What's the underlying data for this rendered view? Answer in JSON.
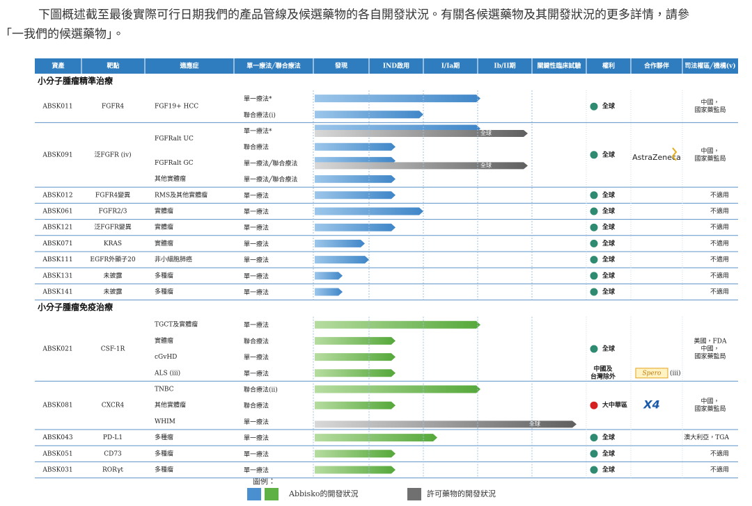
{
  "intro": [
    "下圖概述截至最後實際可行日期我們的產品管線及候選藥物的各自開發狀況。有關各候選藥物及其開發狀況的更多詳情，請參",
    "「一我們的候選藥物」。"
  ],
  "table": {
    "header": [
      "資產",
      "靶點",
      "適應症",
      "單一療法╱聯合療法",
      "發現",
      "IND啟用",
      "I/Ia期",
      "Ib/II期",
      "關鍵性臨床試驗",
      "權利",
      "合作夥伴",
      "司法權區╱機構(v)"
    ],
    "sections": [
      {
        "title": "小分子腫瘤精準治療",
        "assets": [
          {
            "asset": "ABSK011",
            "target": "FGFR4",
            "indications": [
              {
                "indication": "FGF19+ HCC",
                "therapies": [
                  {
                    "therapy": "單一療法*"
                  },
                  {
                    "therapy": "聯合療法(i)"
                  }
                ]
              }
            ],
            "rights": [
              {
                "label": "全球",
                "icon_color": "#2e8a70"
              }
            ],
            "jurisdiction": [
              "中國，",
              "國家藥監局"
            ]
          },
          {
            "asset": "ABSK091",
            "target": "泛FGFR (iv)",
            "indications": [
              {
                "indication": "FGFRalt UC",
                "therapies": [
                  {
                    "therapy": "單一療法*",
                    "licensed": "全球"
                  },
                  {
                    "therapy": "聯合療法"
                  }
                ]
              },
              {
                "indication": "FGFRalt GC",
                "therapies": [
                  {
                    "therapy": "單一療法╱聯合療法",
                    "licensed": "全球"
                  }
                ]
              },
              {
                "indication": "其他實體瘤",
                "therapies": [
                  {
                    "therapy": "單一療法╱聯合療法"
                  }
                ]
              }
            ],
            "rights": [
              {
                "label": "全球",
                "icon_color": "#2e8a70"
              }
            ],
            "partner": {
              "name": "AstraZeneca"
            },
            "jurisdiction": [
              "中國，",
              "國家藥監局"
            ]
          },
          {
            "asset": "ABSK012",
            "target": "FGFR4變異",
            "indications": [
              {
                "indication": "RMS及其他實體瘤",
                "therapies": [
                  {
                    "therapy": "單一療法"
                  }
                ]
              }
            ],
            "rights": [
              {
                "label": "全球",
                "icon_color": "#2e8a70"
              }
            ],
            "jurisdiction": [
              "不適用"
            ]
          },
          {
            "asset": "ABSK061",
            "target": "FGFR2/3",
            "indications": [
              {
                "indication": "實體瘤",
                "therapies": [
                  {
                    "therapy": "單一療法"
                  }
                ]
              }
            ],
            "rights": [
              {
                "label": "全球",
                "icon_color": "#2e8a70"
              }
            ],
            "jurisdiction": [
              "不適用"
            ]
          },
          {
            "asset": "ABSK121",
            "target": "泛FGFR變異",
            "indications": [
              {
                "indication": "實體瘤",
                "therapies": [
                  {
                    "therapy": "單一療法"
                  }
                ]
              }
            ],
            "rights": [
              {
                "label": "全球",
                "icon_color": "#2e8a70"
              }
            ],
            "jurisdiction": [
              "不適用"
            ]
          },
          {
            "asset": "ABSK071",
            "target": "KRAS",
            "indications": [
              {
                "indication": "實體瘤",
                "therapies": [
                  {
                    "therapy": "單一療法"
                  }
                ]
              }
            ],
            "rights": [
              {
                "label": "全球",
                "icon_color": "#2e8a70"
              }
            ],
            "jurisdiction": [
              "不適用"
            ]
          },
          {
            "asset": "ABSK111",
            "target": "EGFR外顯子20",
            "indications": [
              {
                "indication": "非小細胞肺癌",
                "therapies": [
                  {
                    "therapy": "單一療法"
                  }
                ]
              }
            ],
            "rights": [
              {
                "label": "全球",
                "icon_color": "#2e8a70"
              }
            ],
            "jurisdiction": [
              "不適用"
            ]
          },
          {
            "asset": "ABSK131",
            "target": "未披露",
            "indications": [
              {
                "indication": "多種瘤",
                "therapies": [
                  {
                    "therapy": "單一療法"
                  }
                ]
              }
            ],
            "rights": [
              {
                "label": "全球",
                "icon_color": "#2e8a70"
              }
            ],
            "jurisdiction": [
              "不適用"
            ]
          },
          {
            "asset": "ABSK141",
            "target": "未披露",
            "indications": [
              {
                "indication": "多種瘤",
                "therapies": [
                  {
                    "therapy": "單一療法"
                  }
                ]
              }
            ],
            "rights": [
              {
                "label": "全球",
                "icon_color": "#2e8a70"
              }
            ],
            "jurisdiction": [
              "不適用"
            ]
          }
        ]
      },
      {
        "title": "小分子腫瘤免疫治療",
        "assets": [
          {
            "asset": "ABSK021",
            "target": "CSF-1R",
            "indications": [
              {
                "indication": "TGCT及實體瘤",
                "therapies": [
                  {
                    "therapy": "單一療法"
                  }
                ]
              },
              {
                "indication": "實體瘤",
                "therapies": [
                  {
                    "therapy": "聯合療法"
                  }
                ]
              },
              {
                "indication": "cGvHD",
                "therapies": [
                  {
                    "therapy": "單一療法"
                  }
                ]
              },
              {
                "indication": "ALS (iii)",
                "therapies": [
                  {
                    "therapy": "單一療法"
                  }
                ]
              }
            ],
            "rights": [
              {
                "label": "全球",
                "icon_color": "#2e8a70"
              },
              {
                "label": "中國及",
                "label2": "台灣除外"
              }
            ],
            "partner": {
              "name": "Spero",
              "note": "(iii)"
            },
            "jurisdiction": [
              "美國，FDA",
              "中國，",
              "國家藥監局"
            ]
          },
          {
            "asset": "ABSK081",
            "target": "CXCR4",
            "indications": [
              {
                "indication": "TNBC",
                "therapies": [
                  {
                    "therapy": "聯合療法(ii)"
                  }
                ]
              },
              {
                "indication": "其他實體瘤",
                "therapies": [
                  {
                    "therapy": "聯合療法"
                  }
                ]
              },
              {
                "indication": "WHIM",
                "therapies": [
                  {
                    "therapy": "單一療法",
                    "licensed": "全球"
                  }
                ]
              }
            ],
            "rights": [
              {
                "label": "大中華區",
                "icon_color": "#d42020"
              }
            ],
            "partner": {
              "name": "X4"
            },
            "jurisdiction": [
              "中國，",
              "國家藥監局"
            ]
          },
          {
            "asset": "ABSK043",
            "target": "PD-L1",
            "indications": [
              {
                "indication": "多種瘤",
                "therapies": [
                  {
                    "therapy": "單一療法"
                  }
                ]
              }
            ],
            "rights": [
              {
                "label": "全球",
                "icon_color": "#2e8a70"
              }
            ],
            "jurisdiction": [
              "澳大利亞，TGA"
            ]
          },
          {
            "asset": "ABSK051",
            "target": "CD73",
            "indications": [
              {
                "indication": "多種瘤",
                "therapies": [
                  {
                    "therapy": "單一療法"
                  }
                ]
              }
            ],
            "rights": [
              {
                "label": "全球",
                "icon_color": "#2e8a70"
              }
            ],
            "jurisdiction": [
              "不適用"
            ]
          },
          {
            "asset": "ABSK031",
            "target": "RORγt",
            "indications": [
              {
                "indication": "多種瘤",
                "therapies": [
                  {
                    "therapy": "單一療法"
                  }
                ]
              }
            ],
            "rights": [
              {
                "label": "全球",
                "icon_color": "#2e8a70"
              }
            ],
            "jurisdiction": [
              "不適用"
            ]
          }
        ]
      }
    ]
  },
  "legend": {
    "title": "圖例：",
    "abbisko": "Abbisko的開發狀況",
    "licensed": "許可藥物的開發狀況"
  }
}
